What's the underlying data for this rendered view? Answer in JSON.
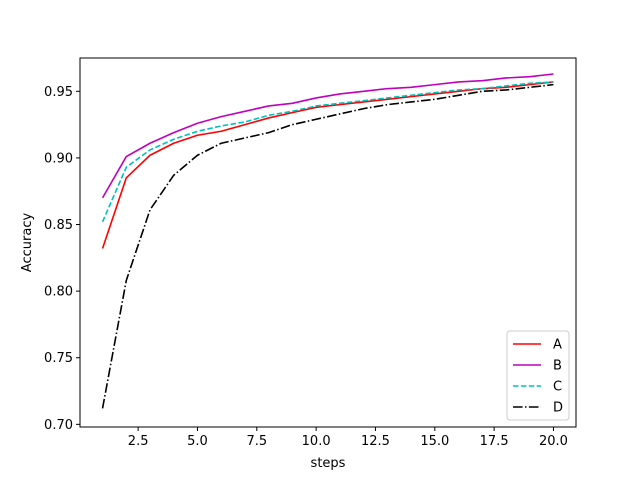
{
  "chart_data": {
    "type": "line",
    "title": "",
    "xlabel": "steps",
    "ylabel": "Accuracy",
    "xlim": [
      0.05,
      20.95
    ],
    "ylim": [
      0.698,
      0.975
    ],
    "xticks": [
      2.5,
      5.0,
      7.5,
      10.0,
      12.5,
      15.0,
      17.5,
      20.0
    ],
    "xtick_labels": [
      "2.5",
      "5.0",
      "7.5",
      "10.0",
      "12.5",
      "15.0",
      "17.5",
      "20.0"
    ],
    "yticks": [
      0.7,
      0.75,
      0.8,
      0.85,
      0.9,
      0.95
    ],
    "ytick_labels": [
      "0.70",
      "0.75",
      "0.80",
      "0.85",
      "0.90",
      "0.95"
    ],
    "grid": false,
    "legend_position": "lower right",
    "x": [
      1,
      2,
      3,
      4,
      5,
      6,
      7,
      8,
      9,
      10,
      11,
      12,
      13,
      14,
      15,
      16,
      17,
      18,
      19,
      20
    ],
    "series": [
      {
        "name": "A",
        "color": "#ff0000",
        "dash": "solid",
        "values": [
          0.832,
          0.885,
          0.902,
          0.911,
          0.917,
          0.92,
          0.925,
          0.93,
          0.934,
          0.938,
          0.94,
          0.942,
          0.944,
          0.946,
          0.948,
          0.95,
          0.952,
          0.953,
          0.955,
          0.957
        ]
      },
      {
        "name": "B",
        "color": "#bf00bf",
        "dash": "solid",
        "values": [
          0.87,
          0.901,
          0.911,
          0.919,
          0.926,
          0.931,
          0.935,
          0.939,
          0.941,
          0.945,
          0.948,
          0.95,
          0.952,
          0.953,
          0.955,
          0.957,
          0.958,
          0.96,
          0.961,
          0.963
        ]
      },
      {
        "name": "C",
        "color": "#00bfbf",
        "dash": "dashed",
        "values": [
          0.852,
          0.893,
          0.906,
          0.914,
          0.92,
          0.924,
          0.927,
          0.932,
          0.935,
          0.939,
          0.941,
          0.943,
          0.945,
          0.947,
          0.949,
          0.951,
          0.952,
          0.954,
          0.956,
          0.957
        ]
      },
      {
        "name": "D",
        "color": "#000000",
        "dash": "dashdot",
        "values": [
          0.712,
          0.808,
          0.861,
          0.887,
          0.902,
          0.911,
          0.915,
          0.919,
          0.925,
          0.929,
          0.933,
          0.937,
          0.94,
          0.942,
          0.944,
          0.947,
          0.95,
          0.951,
          0.953,
          0.955
        ]
      }
    ]
  }
}
